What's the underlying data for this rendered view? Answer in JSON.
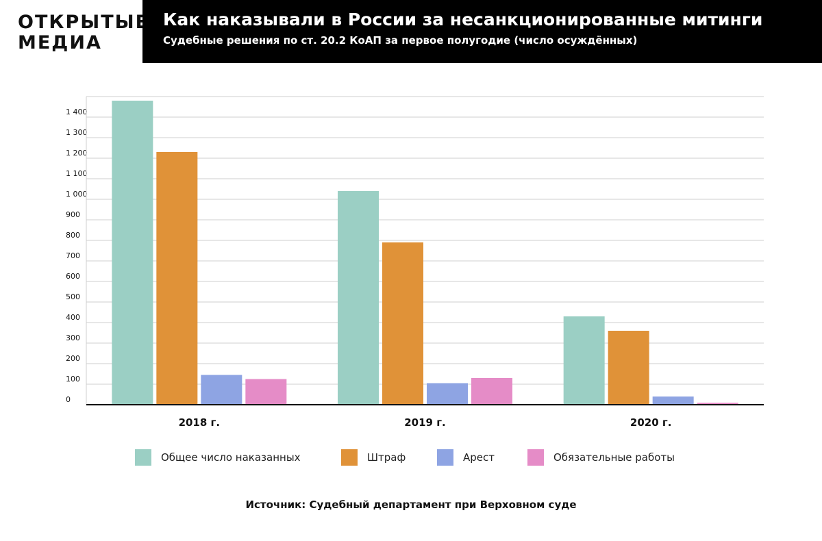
{
  "brand": {
    "line1": "ОТКРЫТЫЕ",
    "line2": "МЕДИА"
  },
  "header": {
    "title": "Как наказывали в России за несанкционированные митинги",
    "subtitle": "Судебные решения по ст. 20.2 КоАП за первое полугодие (число осуждённых)"
  },
  "source": "Источник: Судебный департамент при Верховном суде",
  "chart_data": {
    "type": "bar",
    "title": "Как наказывали в России за несанкционированные митинги",
    "subtitle": "Судебные решения по ст. 20.2 КоАП за первое полугодие (число осуждённых)",
    "categories": [
      "2018 г.",
      "2019 г.",
      "2020 г."
    ],
    "series": [
      {
        "name": "Общее число наказанных",
        "color": "#9bcfc4",
        "values": [
          1480,
          1040,
          430
        ]
      },
      {
        "name": "Штраф",
        "color": "#e09238",
        "values": [
          1230,
          790,
          360
        ]
      },
      {
        "name": "Арест",
        "color": "#8ea4e3",
        "values": [
          145,
          105,
          40
        ]
      },
      {
        "name": "Обязательные работы",
        "color": "#e58cc7",
        "values": [
          125,
          130,
          10
        ]
      }
    ],
    "yticks": [
      "0",
      "100",
      "200",
      "300",
      "400",
      "500",
      "600",
      "700",
      "800",
      "900",
      "1 000",
      "1 100",
      "1 200",
      "1 300",
      "1 400"
    ],
    "ylim": [
      0,
      1500
    ],
    "grid": true,
    "legend": "bottom",
    "xlabel": "",
    "ylabel": ""
  }
}
